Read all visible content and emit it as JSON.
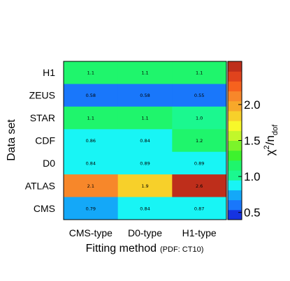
{
  "chart_data": {
    "type": "heatmap",
    "x_categories": [
      "CMS-type",
      "D0-type",
      "H1-type"
    ],
    "y_categories": [
      "H1",
      "ZEUS",
      "STAR",
      "CDF",
      "D0",
      "ATLAS",
      "CMS"
    ],
    "values": [
      [
        1.1,
        1.1,
        1.1
      ],
      [
        0.58,
        0.58,
        0.55
      ],
      [
        1.1,
        1.1,
        1.0
      ],
      [
        0.86,
        0.84,
        1.2
      ],
      [
        0.84,
        0.89,
        0.89
      ],
      [
        2.1,
        1.9,
        2.6
      ],
      [
        0.79,
        0.84,
        0.87
      ]
    ],
    "value_labels": [
      [
        "1.1",
        "1.1",
        "1.1"
      ],
      [
        "0.58",
        "0.58",
        "0.55"
      ],
      [
        "1.1",
        "1.1",
        "1.0"
      ],
      [
        "0.86",
        "0.84",
        "1.2"
      ],
      [
        "0.84",
        "0.89",
        "0.89"
      ],
      [
        "2.1",
        "1.9",
        "2.6"
      ],
      [
        "0.79",
        "0.84",
        "0.87"
      ]
    ],
    "xlabel": "Fitting method",
    "xlabel_note": "(PDF: CT10)",
    "ylabel": "Data set",
    "colorbar": {
      "title_main": "χ",
      "title_sup": "2",
      "title_mid": "/n",
      "title_sub": "dof",
      "range": [
        0.4,
        2.6
      ],
      "ticks": [
        0.5,
        1.0,
        1.5,
        2.0
      ],
      "tick_labels": [
        "0.5",
        "1.0",
        "1.5",
        "2.0"
      ],
      "palette": [
        "#1633e0",
        "#1977fb",
        "#14a8f8",
        "#18f5f5",
        "#1bf88f",
        "#1ff56c",
        "#3df22d",
        "#7bf42a",
        "#c2f72a",
        "#f7f82a",
        "#f7d02a",
        "#f7a82a",
        "#f7872a",
        "#f6621e",
        "#e0431d",
        "#be2e1b"
      ]
    }
  }
}
